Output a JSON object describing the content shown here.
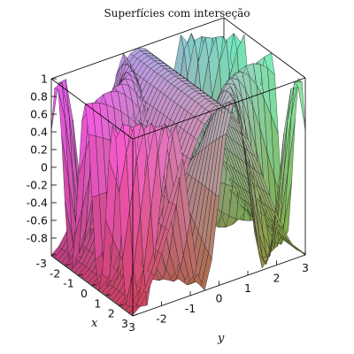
{
  "chart_data": {
    "type": "surface3d",
    "title": "Superfícies com interseção",
    "xlabel": "x",
    "ylabel": "y",
    "zlabel": "",
    "xlim": [
      -3,
      3
    ],
    "ylim": [
      -3,
      3
    ],
    "zlim": [
      -1,
      1
    ],
    "z_ticks": [
      "1",
      "0.8",
      "0.6",
      "0.4",
      "0.2",
      "0",
      "-0.2",
      "-0.4",
      "-0.6",
      "-0.8"
    ],
    "x_ticks": [
      "-3",
      "-2",
      "-1",
      "0",
      "1",
      "2",
      "3"
    ],
    "y_ticks": [
      "-2",
      "-1",
      "0",
      "1",
      "2",
      "3"
    ],
    "surfaces": [
      {
        "expression": "sin(x*y)"
      },
      {
        "expression": "cos(y)"
      }
    ],
    "grid": false,
    "box": true
  }
}
